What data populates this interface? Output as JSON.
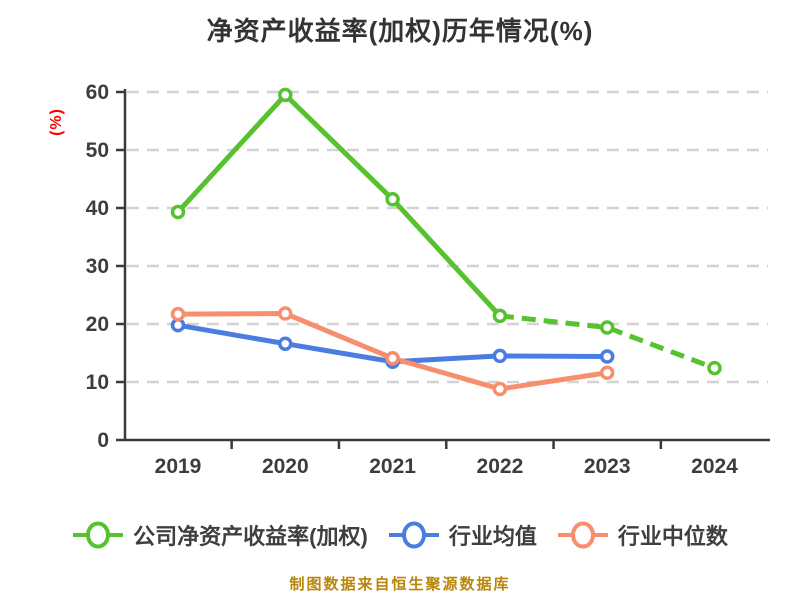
{
  "title": "净资产收益率(加权)历年情况(%)",
  "y_axis_label": "(%)",
  "footer": "制图数据来自恒生聚源数据库",
  "colors": {
    "background": "#ffffff",
    "title_text": "#333333",
    "axis_text": "#3d3d3d",
    "axis_line": "#3a3a3a",
    "gridline": "#d3d3d3",
    "unit_label": "#ff0000",
    "footer_text": "#b8860b",
    "marker_fill": "#ffffff"
  },
  "chart_data": {
    "type": "line",
    "title": "净资产收益率(加权)历年情况(%)",
    "ylabel": "(%)",
    "categories": [
      "2019",
      "2020",
      "2021",
      "2022",
      "2023",
      "2024"
    ],
    "y_ticks": [
      0,
      10,
      20,
      30,
      40,
      50,
      60
    ],
    "ylim": [
      0,
      60
    ],
    "grid": "horizontal-dashed",
    "legend_position": "bottom",
    "series": [
      {
        "name": "公司净资产收益率(加权)",
        "color": "#57c22f",
        "marker": "circle-white-fill",
        "values": [
          39.3,
          59.5,
          41.5,
          21.4,
          19.4,
          12.4
        ],
        "dashed_from_index": 3
      },
      {
        "name": "行业均值",
        "color": "#4b7de1",
        "marker": "circle-white-fill",
        "values": [
          19.8,
          16.6,
          13.5,
          14.5,
          14.4,
          null
        ]
      },
      {
        "name": "行业中位数",
        "color": "#f78f6c",
        "marker": "circle-white-fill",
        "values": [
          21.7,
          21.8,
          14.1,
          8.8,
          11.6,
          null
        ]
      }
    ]
  }
}
